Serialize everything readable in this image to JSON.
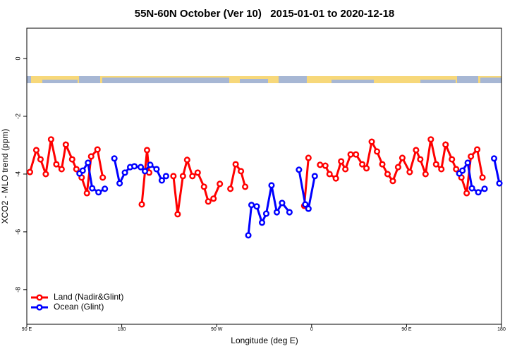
{
  "chart_data": {
    "type": "line",
    "title": "55N-60N October (Ver 10)   2015-01-01 to 2020-12-18",
    "x_label": "Longitude (deg E)",
    "y_label": "XCO2 - MLO trend (ppm)",
    "xlim": [
      90,
      540
    ],
    "xticks": [
      {
        "value": 90,
        "label": "90 E"
      },
      {
        "value": 180,
        "label": "180"
      },
      {
        "value": 270,
        "label": "90 W"
      },
      {
        "value": 360,
        "label": "0"
      },
      {
        "value": 450,
        "label": "90 E"
      },
      {
        "value": 540,
        "label": "180"
      }
    ],
    "ylim": [
      -9.2,
      1.05
    ],
    "yticks": [
      0,
      -2,
      -4,
      -6,
      -8
    ],
    "legend": "bottom-left",
    "series": [
      {
        "name": "Land (Nadir&Glint)",
        "color": "#ff0000",
        "x": [
          93,
          99,
          103,
          108,
          113,
          118,
          123,
          127,
          133,
          137,
          142,
          147,
          151,
          157,
          162,
          null,
          199,
          204,
          206,
          null,
          229,
          233,
          238,
          242,
          247,
          252,
          258,
          262,
          267,
          273,
          null,
          283,
          288,
          293,
          297,
          null,
          353,
          357,
          null,
          368,
          373,
          377,
          383,
          388,
          392,
          397,
          402,
          408,
          412,
          417,
          422,
          427,
          432,
          437,
          442,
          446,
          453,
          459,
          463,
          468,
          473,
          478,
          483,
          487,
          493,
          497,
          502,
          507,
          511,
          517,
          522
        ],
        "values": [
          -3.93,
          -3.17,
          -3.49,
          -4.0,
          -2.8,
          -3.66,
          -3.83,
          -2.98,
          -3.49,
          -3.83,
          -4.12,
          -4.66,
          -3.39,
          -3.15,
          -4.12,
          null,
          -5.05,
          -3.17,
          -3.95,
          null,
          -4.07,
          -5.39,
          -4.07,
          -3.51,
          -4.07,
          -3.95,
          -4.44,
          -4.95,
          -4.85,
          -4.34,
          null,
          -4.51,
          -3.66,
          -3.9,
          -4.44,
          null,
          -5.1,
          -3.44,
          null,
          -3.68,
          -3.71,
          -4.0,
          -4.15,
          -3.56,
          -3.83,
          -3.32,
          -3.32,
          -3.66,
          -3.8,
          -2.88,
          -3.22,
          -3.66,
          -4.0,
          -4.24,
          -3.76,
          -3.44,
          -3.93,
          -3.17,
          -3.49,
          -4.0,
          -2.8,
          -3.66,
          -3.83,
          -2.98,
          -3.49,
          -3.83,
          -4.12,
          -4.66,
          -3.39,
          -3.15,
          -4.12
        ]
      },
      {
        "name": "Ocean (Glint)",
        "color": "#0000ff",
        "x": [
          140,
          143,
          148,
          152,
          158,
          164,
          null,
          173,
          178,
          183,
          188,
          192,
          198,
          202,
          207,
          213,
          218,
          222,
          null,
          300,
          303,
          308,
          313,
          317,
          322,
          327,
          332,
          339,
          null,
          348,
          354,
          357,
          363,
          null,
          500,
          503,
          508,
          512,
          518,
          524,
          null,
          533,
          538
        ],
        "values": [
          -3.98,
          -3.88,
          -3.61,
          -4.49,
          -4.63,
          -4.51,
          null,
          -3.46,
          -4.32,
          -3.95,
          -3.76,
          -3.73,
          -3.76,
          -3.9,
          -3.68,
          -3.83,
          -4.22,
          -4.07,
          null,
          -6.12,
          -5.07,
          -5.12,
          -5.68,
          -5.37,
          -4.39,
          -5.32,
          -5.0,
          -5.32,
          null,
          -3.85,
          -5.05,
          -5.2,
          -4.07,
          null,
          -3.98,
          -3.88,
          -3.61,
          -4.49,
          -4.63,
          -4.51,
          null,
          -3.46,
          -4.32
        ]
      }
    ]
  }
}
